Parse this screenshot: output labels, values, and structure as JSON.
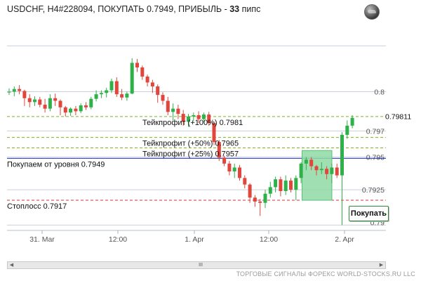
{
  "header": {
    "title": "USDCHF, H4#228094, ПОКУПАТЬ 0.7949, ПРИБЫЛЬ - ",
    "profit_value": "33",
    "profit_unit": " пипс"
  },
  "buy_button": {
    "label": "Покупать"
  },
  "footer": {
    "text": "ТОРГОВЫЕ СИГНАЛЫ ФОРЕКС WORLD-STOCKS.RU LLC"
  },
  "scrollbar": {
    "left_arrow": "◀",
    "right_arrow": "▶",
    "thumb": "III"
  },
  "chart_data": {
    "type": "candlestick",
    "symbol": "USDCHF",
    "timeframe": "H4",
    "x_tick_labels": [
      "31. Mar",
      "12:00",
      "1. Apr",
      "12:00",
      "2. Apr"
    ],
    "y_tick_labels": [
      {
        "label": "0.8",
        "value": 0.8
      },
      {
        "label": "0.797",
        "value": 0.797
      },
      {
        "label": "0.795",
        "value": 0.795
      },
      {
        "label": "0.7925",
        "value": 0.7925
      },
      {
        "label": "0.79",
        "value": 0.79
      }
    ],
    "ylim": [
      0.7895,
      0.8055
    ],
    "current_price_label": "0.79811",
    "current_price": 0.79811,
    "levels": [
      {
        "label": "Тейкпрофит (+100%) 0.7981",
        "value": 0.7981,
        "style": "dashed",
        "color": "#7ab51d"
      },
      {
        "label": "Тейкпрофит (+50%) 0.7965",
        "value": 0.7965,
        "style": "dashed",
        "color": "#7ab51d"
      },
      {
        "label": "Тейкпрофит (+25%) 0.7957",
        "value": 0.7957,
        "style": "dashed",
        "color": "#7ab51d"
      },
      {
        "label": "Покупаем от уровня 0.7949",
        "value": 0.7949,
        "style": "solid",
        "color": "#1f2fb0"
      },
      {
        "label": "Стоплосс 0.7917",
        "value": 0.7917,
        "style": "dashed",
        "color": "#d83030"
      }
    ],
    "candles": [
      {
        "o": 0.79995,
        "h": 0.80025,
        "l": 0.79975,
        "c": 0.8
      },
      {
        "o": 0.8,
        "h": 0.8004,
        "l": 0.79965,
        "c": 0.8002
      },
      {
        "o": 0.8002,
        "h": 0.8005,
        "l": 0.7998,
        "c": 0.80005
      },
      {
        "o": 0.80005,
        "h": 0.80015,
        "l": 0.7989,
        "c": 0.7995
      },
      {
        "o": 0.7995,
        "h": 0.7998,
        "l": 0.7988,
        "c": 0.7992
      },
      {
        "o": 0.7992,
        "h": 0.79965,
        "l": 0.7989,
        "c": 0.7994
      },
      {
        "o": 0.7994,
        "h": 0.7996,
        "l": 0.7988,
        "c": 0.799
      },
      {
        "o": 0.799,
        "h": 0.79945,
        "l": 0.7984,
        "c": 0.7987
      },
      {
        "o": 0.7987,
        "h": 0.7998,
        "l": 0.7985,
        "c": 0.7995
      },
      {
        "o": 0.7995,
        "h": 0.79985,
        "l": 0.7989,
        "c": 0.7993
      },
      {
        "o": 0.7993,
        "h": 0.7994,
        "l": 0.7982,
        "c": 0.7988
      },
      {
        "o": 0.7988,
        "h": 0.7989,
        "l": 0.7981,
        "c": 0.7984
      },
      {
        "o": 0.7984,
        "h": 0.7988,
        "l": 0.79815,
        "c": 0.7987
      },
      {
        "o": 0.7987,
        "h": 0.7989,
        "l": 0.7982,
        "c": 0.7985
      },
      {
        "o": 0.7985,
        "h": 0.7991,
        "l": 0.79835,
        "c": 0.79895
      },
      {
        "o": 0.79895,
        "h": 0.7992,
        "l": 0.7986,
        "c": 0.7988
      },
      {
        "o": 0.7988,
        "h": 0.7996,
        "l": 0.79865,
        "c": 0.79945
      },
      {
        "o": 0.79945,
        "h": 0.8001,
        "l": 0.79925,
        "c": 0.7998
      },
      {
        "o": 0.7998,
        "h": 0.8001,
        "l": 0.7995,
        "c": 0.7999
      },
      {
        "o": 0.7999,
        "h": 0.8003,
        "l": 0.79955,
        "c": 0.8001
      },
      {
        "o": 0.8001,
        "h": 0.801,
        "l": 0.7999,
        "c": 0.8008
      },
      {
        "o": 0.8008,
        "h": 0.8011,
        "l": 0.7996,
        "c": 0.7998
      },
      {
        "o": 0.7998,
        "h": 0.8002,
        "l": 0.79935,
        "c": 0.79955
      },
      {
        "o": 0.79955,
        "h": 0.8,
        "l": 0.7993,
        "c": 0.79985
      },
      {
        "o": 0.79985,
        "h": 0.80255,
        "l": 0.7998,
        "c": 0.8022
      },
      {
        "o": 0.8022,
        "h": 0.8025,
        "l": 0.8015,
        "c": 0.80185
      },
      {
        "o": 0.80185,
        "h": 0.802,
        "l": 0.8009,
        "c": 0.80115
      },
      {
        "o": 0.80115,
        "h": 0.8013,
        "l": 0.8004,
        "c": 0.8007
      },
      {
        "o": 0.8007,
        "h": 0.8009,
        "l": 0.7999,
        "c": 0.8004
      },
      {
        "o": 0.8004,
        "h": 0.80055,
        "l": 0.79915,
        "c": 0.79975
      },
      {
        "o": 0.79975,
        "h": 0.79995,
        "l": 0.799,
        "c": 0.7993
      },
      {
        "o": 0.7993,
        "h": 0.7996,
        "l": 0.7982,
        "c": 0.79845
      },
      {
        "o": 0.79845,
        "h": 0.7991,
        "l": 0.7978,
        "c": 0.7987
      },
      {
        "o": 0.7987,
        "h": 0.799,
        "l": 0.7979,
        "c": 0.7983
      },
      {
        "o": 0.7983,
        "h": 0.7986,
        "l": 0.7974,
        "c": 0.7977
      },
      {
        "o": 0.7977,
        "h": 0.7983,
        "l": 0.7973,
        "c": 0.7981
      },
      {
        "o": 0.7981,
        "h": 0.7984,
        "l": 0.7977,
        "c": 0.7982
      },
      {
        "o": 0.7982,
        "h": 0.7985,
        "l": 0.7976,
        "c": 0.7979
      },
      {
        "o": 0.7979,
        "h": 0.7984,
        "l": 0.79765,
        "c": 0.79825
      },
      {
        "o": 0.79825,
        "h": 0.79845,
        "l": 0.7974,
        "c": 0.7976
      },
      {
        "o": 0.7976,
        "h": 0.7977,
        "l": 0.7959,
        "c": 0.79615
      },
      {
        "o": 0.79615,
        "h": 0.7963,
        "l": 0.7947,
        "c": 0.79495
      },
      {
        "o": 0.79495,
        "h": 0.7951,
        "l": 0.7943,
        "c": 0.7945
      },
      {
        "o": 0.7945,
        "h": 0.7947,
        "l": 0.7936,
        "c": 0.7939
      },
      {
        "o": 0.7939,
        "h": 0.7945,
        "l": 0.7934,
        "c": 0.7942
      },
      {
        "o": 0.7942,
        "h": 0.7944,
        "l": 0.7932,
        "c": 0.7934
      },
      {
        "o": 0.7934,
        "h": 0.7936,
        "l": 0.7926,
        "c": 0.7929
      },
      {
        "o": 0.7929,
        "h": 0.793,
        "l": 0.7915,
        "c": 0.7919
      },
      {
        "o": 0.7919,
        "h": 0.7921,
        "l": 0.7912,
        "c": 0.7916
      },
      {
        "o": 0.7916,
        "h": 0.7918,
        "l": 0.7905,
        "c": 0.7915
      },
      {
        "o": 0.7915,
        "h": 0.7925,
        "l": 0.7911,
        "c": 0.7922
      },
      {
        "o": 0.7922,
        "h": 0.7931,
        "l": 0.7919,
        "c": 0.7927
      },
      {
        "o": 0.7927,
        "h": 0.7935,
        "l": 0.7923,
        "c": 0.7933
      },
      {
        "o": 0.7933,
        "h": 0.7935,
        "l": 0.792,
        "c": 0.7924
      },
      {
        "o": 0.7924,
        "h": 0.7936,
        "l": 0.7921,
        "c": 0.7932
      },
      {
        "o": 0.7932,
        "h": 0.7934,
        "l": 0.7923,
        "c": 0.7925
      },
      {
        "o": 0.7925,
        "h": 0.7936,
        "l": 0.7917,
        "c": 0.7934
      },
      {
        "o": 0.7934,
        "h": 0.7946,
        "l": 0.793,
        "c": 0.7945
      },
      {
        "o": 0.7945,
        "h": 0.795,
        "l": 0.794,
        "c": 0.7948
      },
      {
        "o": 0.7948,
        "h": 0.795,
        "l": 0.794,
        "c": 0.7943
      },
      {
        "o": 0.7943,
        "h": 0.7944,
        "l": 0.7936,
        "c": 0.794
      },
      {
        "o": 0.794,
        "h": 0.7946,
        "l": 0.7937,
        "c": 0.7941
      },
      {
        "o": 0.7941,
        "h": 0.7943,
        "l": 0.7933,
        "c": 0.7937
      },
      {
        "o": 0.7937,
        "h": 0.7945,
        "l": 0.793,
        "c": 0.7942
      },
      {
        "o": 0.7942,
        "h": 0.7945,
        "l": 0.7934,
        "c": 0.7936
      },
      {
        "o": 0.7936,
        "h": 0.7969,
        "l": 0.7898,
        "c": 0.7967
      },
      {
        "o": 0.7967,
        "h": 0.7978,
        "l": 0.7964,
        "c": 0.7974
      },
      {
        "o": 0.7974,
        "h": 0.7982,
        "l": 0.7972,
        "c": 0.798
      }
    ]
  }
}
